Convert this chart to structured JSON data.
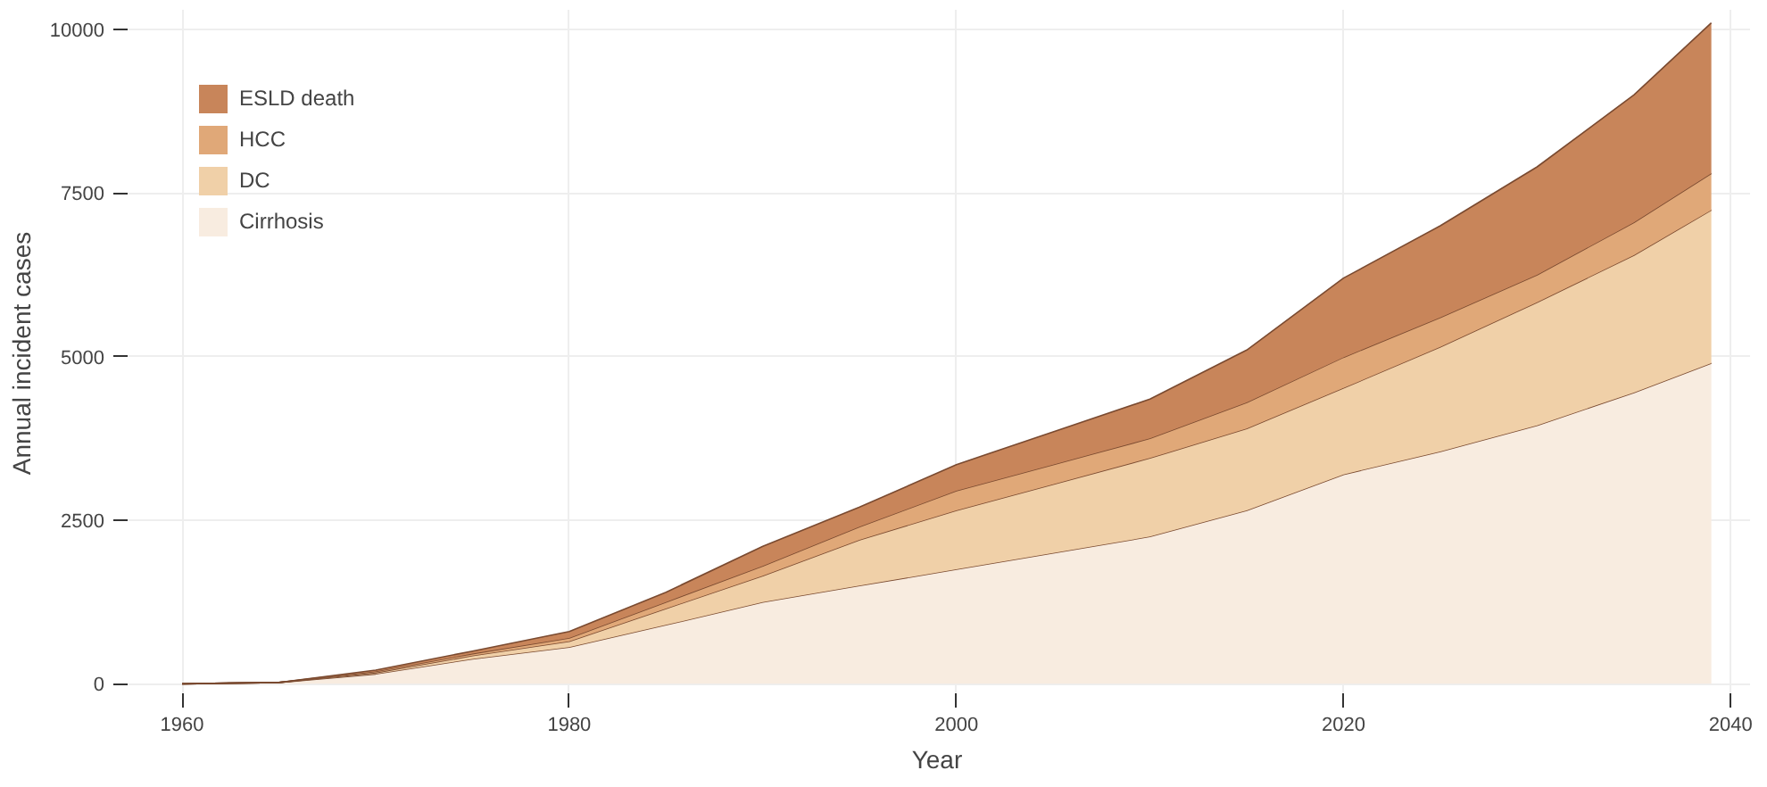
{
  "chart_data": {
    "type": "area",
    "stacked": true,
    "xlabel": "Year",
    "ylabel": "Annual incident cases",
    "x": [
      1960,
      1965,
      1970,
      1975,
      1980,
      1985,
      1990,
      1995,
      2000,
      2005,
      2010,
      2015,
      2020,
      2025,
      2030,
      2035,
      2039
    ],
    "series": [
      {
        "name": "Cirrhosis",
        "color": "#f8ece0",
        "values": [
          0,
          20,
          150,
          380,
          560,
          900,
          1250,
          1500,
          1750,
          2000,
          2250,
          2650,
          3200,
          3550,
          3950,
          4450,
          4900
        ]
      },
      {
        "name": "DC",
        "color": "#f0d0a8",
        "values": [
          0,
          0,
          20,
          50,
          90,
          250,
          400,
          700,
          900,
          1050,
          1200,
          1250,
          1320,
          1600,
          1880,
          2100,
          2340
        ]
      },
      {
        "name": "HCC",
        "color": "#e0a878",
        "values": [
          0,
          0,
          20,
          30,
          50,
          100,
          150,
          200,
          300,
          300,
          300,
          400,
          470,
          450,
          420,
          500,
          560
        ]
      },
      {
        "name": "ESLD death",
        "color": "#c8855a",
        "values": [
          0,
          0,
          20,
          40,
          100,
          150,
          300,
          300,
          400,
          500,
          600,
          800,
          1210,
          1400,
          1650,
          1950,
          2300
        ]
      }
    ],
    "xlim": [
      1957,
      2041
    ],
    "ylim": [
      -200,
      10300
    ],
    "xticks": [
      1960,
      1980,
      2000,
      2020,
      2040
    ],
    "yticks": [
      0,
      2500,
      5000,
      7500,
      10000
    ],
    "grid": true,
    "legend": "top left"
  }
}
